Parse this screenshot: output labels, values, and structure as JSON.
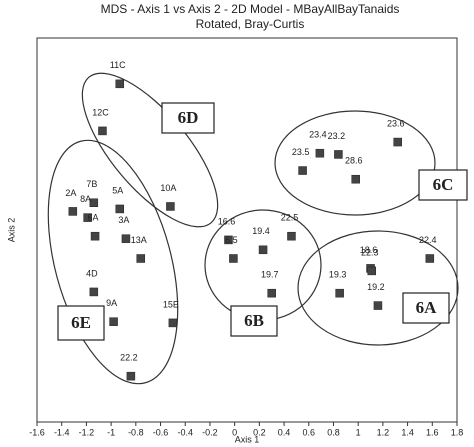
{
  "chart_data": {
    "type": "scatter",
    "title": "MDS - Axis 1 vs Axis 2 - 2D Model - MBayAllBayTanaids",
    "subtitle": "Rotated, Bray-Curtis",
    "xlabel": "Axis 1",
    "ylabel": "Axis 2",
    "labels": [
      "11C",
      "12C",
      "10A",
      "2A",
      "7B",
      "8A",
      "6A",
      "5A",
      "3A",
      "13A",
      "4D",
      "9A",
      "15E",
      "22.2",
      "16.6",
      "6.5",
      "19.4",
      "22.5",
      "19.7",
      "23.4",
      "23.2",
      "23.5",
      "23.6",
      "28.6",
      "19.3",
      "18.6",
      "22.3",
      "19.2",
      "22.4"
    ],
    "x": [
      -0.93,
      -1.07,
      -0.52,
      -1.31,
      -1.14,
      -1.19,
      -1.13,
      -0.93,
      -0.88,
      -0.76,
      -1.14,
      -0.98,
      -0.5,
      -0.84,
      -0.05,
      -0.01,
      0.23,
      0.46,
      0.3,
      0.69,
      0.84,
      0.55,
      1.32,
      0.98,
      0.85,
      1.1,
      1.11,
      1.16,
      1.58
    ],
    "values": [
      1.18,
      0.8,
      0.19,
      0.15,
      0.22,
      0.1,
      -0.05,
      0.17,
      -0.07,
      -0.23,
      -0.5,
      -0.74,
      -0.75,
      -1.18,
      -0.08,
      -0.23,
      -0.16,
      -0.05,
      -0.51,
      0.62,
      0.61,
      0.48,
      0.71,
      0.41,
      -0.51,
      -0.31,
      -0.33,
      -0.61,
      -0.23
    ],
    "color": "#444444",
    "xlim": [
      -1.6,
      1.8
    ],
    "ylim": [
      -1.55,
      1.55
    ],
    "xticks": [
      -1.6,
      -1.4,
      -1.2,
      -1,
      -0.8,
      -0.6,
      -0.4,
      -0.2,
      0,
      0.2,
      0.4,
      0.6,
      0.8,
      1,
      1.2,
      1.4,
      1.6,
      1.8
    ],
    "annotations": [
      "6D",
      "6C",
      "6E",
      "6B",
      "6A"
    ]
  }
}
